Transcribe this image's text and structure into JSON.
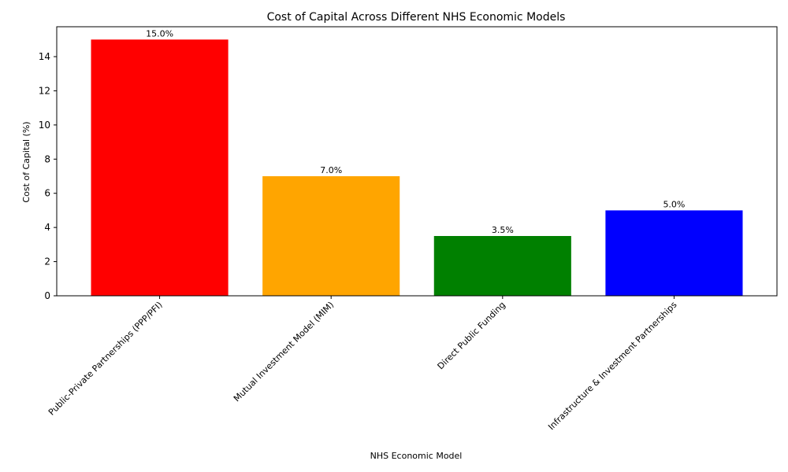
{
  "chart_data": {
    "type": "bar",
    "title": "Cost of Capital Across Different NHS Economic Models",
    "xlabel": "NHS Economic Model",
    "ylabel": "Cost of Capital (%)",
    "categories": [
      "Public-Private Partnerships (PPP/PFI)",
      "Mutual Investment Model (MIM)",
      "Direct Public Funding",
      "Infrastructure & Investment Partnerships"
    ],
    "values": [
      15.0,
      7.0,
      3.5,
      5.0
    ],
    "data_labels": [
      "15.0%",
      "7.0%",
      "3.5%",
      "5.0%"
    ],
    "colors": [
      "#ff0000",
      "#ffa500",
      "#008000",
      "#0000ff"
    ],
    "ylim": [
      0,
      15.75
    ],
    "yticks": [
      0,
      2,
      4,
      6,
      8,
      10,
      12,
      14
    ],
    "grid": false,
    "legend": "none"
  }
}
